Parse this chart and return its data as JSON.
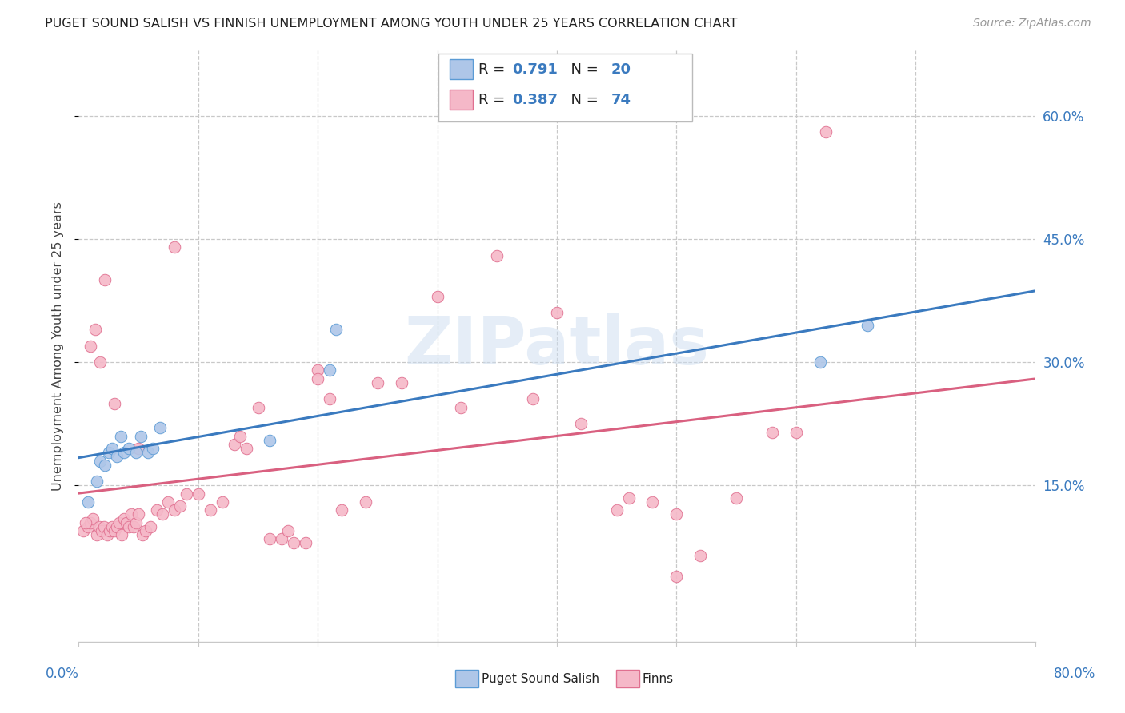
{
  "title": "PUGET SOUND SALISH VS FINNISH UNEMPLOYMENT AMONG YOUTH UNDER 25 YEARS CORRELATION CHART",
  "source": "Source: ZipAtlas.com",
  "ylabel": "Unemployment Among Youth under 25 years",
  "ytick_vals": [
    0.15,
    0.3,
    0.45,
    0.6
  ],
  "ytick_labels": [
    "15.0%",
    "30.0%",
    "45.0%",
    "60.0%"
  ],
  "watermark": "ZIPatlas",
  "legend_puget": "Puget Sound Salish",
  "legend_finns": "Finns",
  "puget_fill": "#aec6e8",
  "puget_edge": "#5b9bd5",
  "finns_fill": "#f5b8c8",
  "finns_edge": "#e07090",
  "puget_line_color": "#3a7abf",
  "finns_line_color": "#d96080",
  "title_color": "#222222",
  "source_color": "#999999",
  "legend_r_val_color": "#3a7abf",
  "legend_n_val_color": "#d96080",
  "legend_text_color": "#222222",
  "background_color": "#ffffff",
  "grid_color": "#c8c8c8",
  "axis_tick_color": "#3a7abf",
  "xlim": [
    0.0,
    0.8
  ],
  "ylim": [
    -0.04,
    0.68
  ],
  "puget_x": [
    0.008,
    0.015,
    0.018,
    0.022,
    0.025,
    0.028,
    0.032,
    0.035,
    0.038,
    0.042,
    0.048,
    0.052,
    0.058,
    0.062,
    0.068,
    0.16,
    0.21,
    0.215,
    0.62,
    0.66
  ],
  "puget_y": [
    0.13,
    0.155,
    0.18,
    0.175,
    0.19,
    0.195,
    0.185,
    0.21,
    0.19,
    0.195,
    0.19,
    0.21,
    0.19,
    0.195,
    0.22,
    0.205,
    0.29,
    0.34,
    0.3,
    0.345
  ],
  "finns_x": [
    0.004,
    0.008,
    0.01,
    0.012,
    0.015,
    0.017,
    0.019,
    0.021,
    0.024,
    0.026,
    0.028,
    0.03,
    0.032,
    0.034,
    0.036,
    0.038,
    0.04,
    0.042,
    0.044,
    0.046,
    0.048,
    0.05,
    0.053,
    0.056,
    0.06,
    0.065,
    0.07,
    0.075,
    0.08,
    0.085,
    0.09,
    0.1,
    0.11,
    0.12,
    0.13,
    0.135,
    0.14,
    0.16,
    0.17,
    0.175,
    0.18,
    0.19,
    0.2,
    0.21,
    0.22,
    0.24,
    0.27,
    0.3,
    0.32,
    0.35,
    0.38,
    0.4,
    0.42,
    0.45,
    0.46,
    0.48,
    0.5,
    0.52,
    0.55,
    0.58,
    0.6,
    0.625,
    0.006,
    0.01,
    0.014,
    0.018,
    0.022,
    0.03,
    0.05,
    0.08,
    0.15,
    0.2,
    0.25,
    0.5
  ],
  "finns_y": [
    0.095,
    0.1,
    0.105,
    0.11,
    0.09,
    0.1,
    0.095,
    0.1,
    0.09,
    0.095,
    0.1,
    0.095,
    0.1,
    0.105,
    0.09,
    0.11,
    0.105,
    0.1,
    0.115,
    0.1,
    0.105,
    0.115,
    0.09,
    0.095,
    0.1,
    0.12,
    0.115,
    0.13,
    0.12,
    0.125,
    0.14,
    0.14,
    0.12,
    0.13,
    0.2,
    0.21,
    0.195,
    0.085,
    0.085,
    0.095,
    0.08,
    0.08,
    0.29,
    0.255,
    0.12,
    0.13,
    0.275,
    0.38,
    0.245,
    0.43,
    0.255,
    0.36,
    0.225,
    0.12,
    0.135,
    0.13,
    0.04,
    0.065,
    0.135,
    0.215,
    0.215,
    0.58,
    0.105,
    0.32,
    0.34,
    0.3,
    0.4,
    0.25,
    0.195,
    0.44,
    0.245,
    0.28,
    0.275,
    0.115
  ]
}
